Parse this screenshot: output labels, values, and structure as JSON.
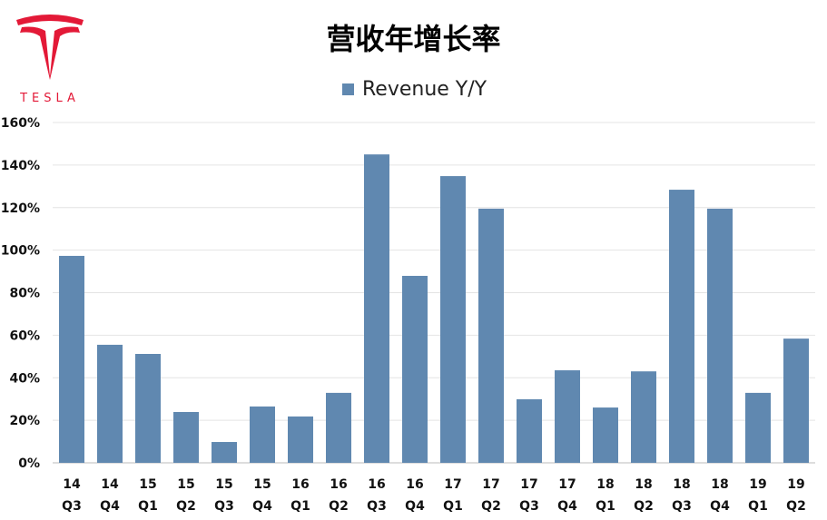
{
  "logo": {
    "text": "TESLA",
    "color": "#e31937"
  },
  "chart_data": {
    "type": "bar",
    "title": "营收年增长率",
    "legend_position": "top",
    "series": [
      {
        "name": "Revenue Y/Y",
        "color": "#6088b0",
        "values": [
          97.3,
          55.5,
          51.2,
          23.9,
          9.8,
          26.5,
          21.8,
          32.9,
          145,
          87.9,
          134.8,
          119.5,
          29.9,
          43.5,
          26,
          43,
          128.4,
          119.5,
          32.9,
          58.4
        ]
      }
    ],
    "categories": [
      [
        "14",
        "Q3"
      ],
      [
        "14",
        "Q4"
      ],
      [
        "15",
        "Q1"
      ],
      [
        "15",
        "Q2"
      ],
      [
        "15",
        "Q3"
      ],
      [
        "15",
        "Q4"
      ],
      [
        "16",
        "Q1"
      ],
      [
        "16",
        "Q2"
      ],
      [
        "16",
        "Q3"
      ],
      [
        "16",
        "Q4"
      ],
      [
        "17",
        "Q1"
      ],
      [
        "17",
        "Q2"
      ],
      [
        "17",
        "Q3"
      ],
      [
        "17",
        "Q4"
      ],
      [
        "18",
        "Q1"
      ],
      [
        "18",
        "Q2"
      ],
      [
        "18",
        "Q3"
      ],
      [
        "18",
        "Q4"
      ],
      [
        "19",
        "Q1"
      ],
      [
        "19",
        "Q2"
      ]
    ],
    "ylim": [
      0,
      160
    ],
    "yticks": [
      "0%",
      "20%",
      "40%",
      "60%",
      "80%",
      "100%",
      "120%",
      "140%",
      "160%"
    ],
    "grid": true
  }
}
